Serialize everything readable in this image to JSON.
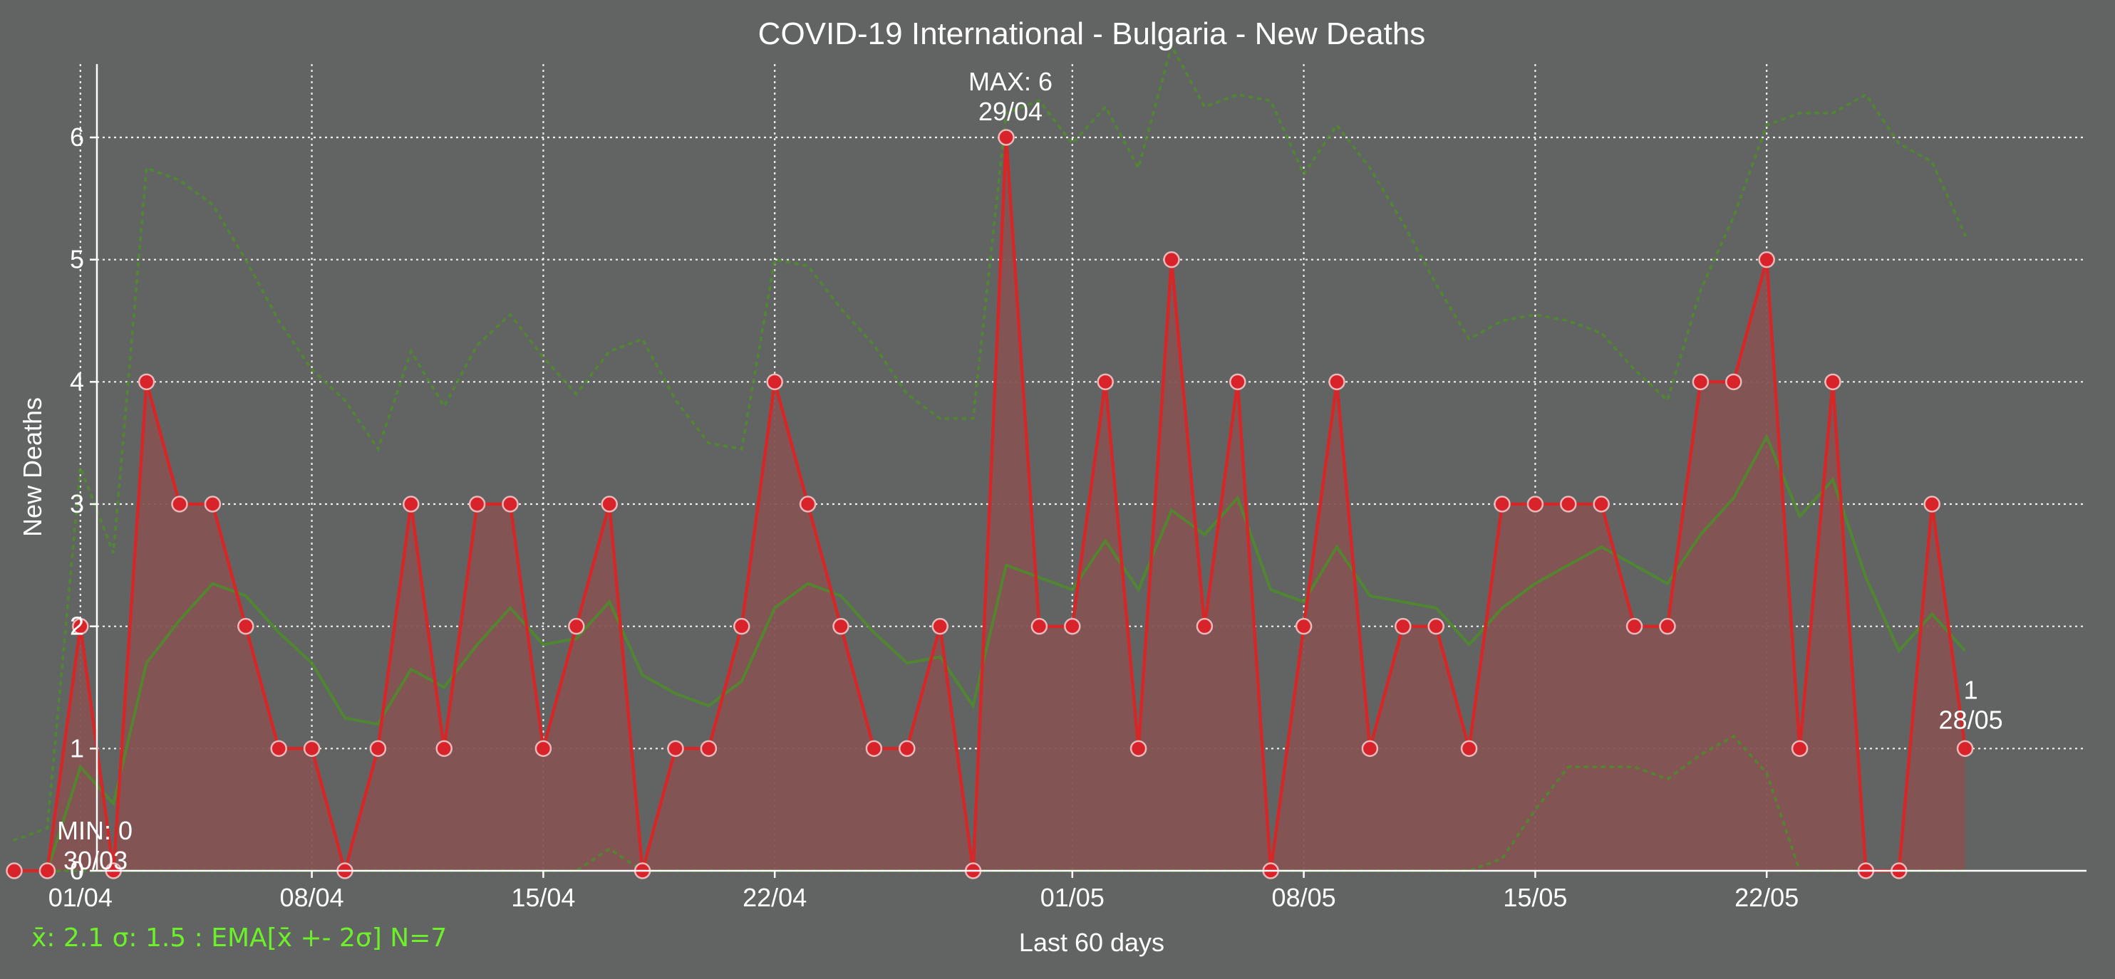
{
  "chart_data": {
    "type": "line",
    "title": "COVID-19 International - Bulgaria - New Deaths",
    "xlabel": "Last 60 days",
    "ylabel": "New Deaths",
    "ylim": [
      0,
      6.6
    ],
    "yticks": [
      0,
      1,
      2,
      3,
      4,
      5,
      6
    ],
    "xtick_labels": [
      "01/04",
      "08/04",
      "15/04",
      "22/04",
      "01/05",
      "08/05",
      "15/05",
      "22/05"
    ],
    "dates": [
      "30/03",
      "31/03",
      "01/04",
      "02/04",
      "03/04",
      "04/04",
      "05/04",
      "06/04",
      "07/04",
      "08/04",
      "09/04",
      "10/04",
      "11/04",
      "12/04",
      "13/04",
      "14/04",
      "15/04",
      "16/04",
      "17/04",
      "18/04",
      "19/04",
      "20/04",
      "21/04",
      "22/04",
      "23/04",
      "24/04",
      "25/04",
      "26/04",
      "27/04",
      "28/04",
      "29/04",
      "30/04",
      "01/05",
      "02/05",
      "03/05",
      "04/05",
      "05/05",
      "06/05",
      "07/05",
      "08/05",
      "09/05",
      "10/05",
      "11/05",
      "12/05",
      "13/05",
      "14/05",
      "15/05",
      "16/05",
      "17/05",
      "18/05",
      "19/05",
      "20/05",
      "21/05",
      "22/05",
      "23/05",
      "24/05",
      "25/05",
      "26/05",
      "27/05",
      "28/05"
    ],
    "series": [
      {
        "kind": "daily",
        "color": "#d62728",
        "values": [
          0,
          0,
          2,
          0,
          4,
          3,
          3,
          2,
          1,
          1,
          0,
          1,
          3,
          1,
          3,
          3,
          1,
          2,
          3,
          0,
          1,
          1,
          2,
          4,
          3,
          2,
          1,
          1,
          2,
          0,
          6,
          2,
          2,
          4,
          1,
          5,
          2,
          4,
          0,
          2,
          4,
          1,
          2,
          2,
          1,
          3,
          3,
          3,
          3,
          2,
          2,
          4,
          4,
          5,
          1,
          4,
          0,
          0,
          3,
          1
        ]
      },
      {
        "kind": "ema",
        "color": "#4f8a2b",
        "values": [
          0,
          0,
          0.85,
          0.55,
          1.7,
          2.05,
          2.35,
          2.25,
          1.95,
          1.7,
          1.25,
          1.2,
          1.65,
          1.5,
          1.85,
          2.15,
          1.85,
          1.9,
          2.2,
          1.6,
          1.45,
          1.35,
          1.55,
          2.15,
          2.35,
          2.25,
          1.95,
          1.7,
          1.75,
          1.35,
          2.5,
          2.4,
          2.3,
          2.7,
          2.3,
          2.95,
          2.75,
          3.05,
          2.3,
          2.2,
          2.65,
          2.25,
          2.2,
          2.15,
          1.85,
          2.15,
          2.35,
          2.5,
          2.65,
          2.5,
          2.35,
          2.75,
          3.05,
          3.55,
          2.9,
          3.2,
          2.4,
          1.8,
          2.1,
          1.8
        ]
      },
      {
        "kind": "ema_upper",
        "color": "#4f8a2b",
        "values": [
          0.25,
          0.35,
          3.3,
          2.6,
          5.75,
          5.65,
          5.45,
          5.0,
          4.5,
          4.1,
          3.85,
          3.45,
          4.25,
          3.8,
          4.3,
          4.55,
          4.2,
          3.9,
          4.25,
          4.35,
          3.85,
          3.5,
          3.45,
          5.0,
          4.95,
          4.6,
          4.3,
          3.9,
          3.7,
          3.7,
          6.2,
          6.3,
          5.95,
          6.25,
          5.75,
          6.75,
          6.25,
          6.35,
          6.3,
          5.7,
          6.1,
          5.75,
          5.3,
          4.8,
          4.35,
          4.5,
          4.55,
          4.5,
          4.4,
          4.1,
          3.85,
          4.75,
          5.35,
          6.1,
          6.2,
          6.2,
          6.35,
          5.95,
          5.8,
          5.2
        ]
      },
      {
        "kind": "ema_lower",
        "color": "#4f8a2b",
        "values": [
          0,
          0,
          0,
          0,
          0,
          0,
          0,
          0,
          0,
          0,
          0,
          0,
          0,
          0,
          0,
          0,
          0,
          0,
          0.18,
          0,
          0,
          0,
          0,
          0,
          0,
          0,
          0,
          0,
          0,
          0,
          0,
          0,
          0,
          0,
          0,
          0,
          0,
          0,
          0,
          0,
          0,
          0,
          0,
          0,
          0,
          0.1,
          0.5,
          0.85,
          0.85,
          0.85,
          0.75,
          0.95,
          1.1,
          0.8,
          0,
          0,
          0,
          0,
          0,
          0
        ]
      }
    ],
    "annotations": {
      "max": {
        "label": "MAX: 6",
        "date": "29/04",
        "value": 6
      },
      "min": {
        "label": "MIN: 0",
        "date": "30/03",
        "value": 0
      },
      "last": {
        "value_label": "1",
        "date": "28/05",
        "value": 1
      }
    },
    "stats_text": "x̄: 2.1 σ: 1.5 : EMA[x̄ +- 2σ] N=7",
    "grid": true,
    "colors": {
      "background": "#626463",
      "text": "#ffffff",
      "daily_line": "#d62728",
      "fill": "#845353",
      "ema": "#4f8a2b",
      "stats": "#6cf02a"
    }
  }
}
